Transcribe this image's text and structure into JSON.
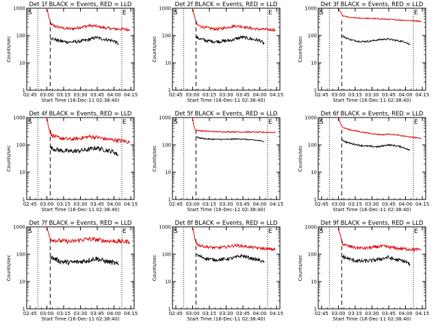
{
  "figure": {
    "background": "#ffffff",
    "colors": {
      "events": "#000000",
      "lld": "#dd0000",
      "axes": "#000000"
    }
  },
  "chart_data": [
    {
      "type": "line",
      "title": "Det 1f BLACK = Events, RED = LLD",
      "xlabel": "Start Time (16-Dec-11 02:38:40)",
      "ylabel": "Counts/sec",
      "xticks": [
        "02:45",
        "03:00",
        "03:15",
        "03:30",
        "03:45",
        "04:00",
        "04:15"
      ],
      "yticks": [
        "1",
        "10",
        "100",
        "1000"
      ],
      "yscale": "log",
      "ylim": [
        1,
        1000
      ],
      "marker_left": "S",
      "marker_right": "E",
      "dotted_lines": [
        "02:52",
        "04:07"
      ],
      "dashed_line": "03:03",
      "series": [
        {
          "color": "#dd0000",
          "x": [
            "03:00",
            "03:02",
            "03:04",
            "03:08",
            "03:15",
            "03:22",
            "03:30",
            "03:38",
            "03:44",
            "03:52",
            "04:00",
            "04:08",
            "04:14"
          ],
          "y": [
            1000,
            420,
            250,
            215,
            185,
            175,
            200,
            230,
            220,
            190,
            175,
            170,
            165
          ],
          "noise": 0.05
        },
        {
          "color": "#000000",
          "x": [
            "03:03",
            "03:06",
            "03:12",
            "03:20",
            "03:28",
            "03:36",
            "03:44",
            "03:50",
            "03:56",
            "04:00",
            "04:04"
          ],
          "y": [
            80,
            75,
            62,
            58,
            60,
            68,
            85,
            75,
            68,
            64,
            48
          ],
          "noise": 0.06
        }
      ]
    },
    {
      "type": "line",
      "title": "Det 2f BLACK = Events, RED = LLD",
      "xlabel": "Start Time (16-Dec-11 02:38:40)",
      "ylabel": "Counts/sec",
      "xticks": [
        "02:45",
        "03:00",
        "03:15",
        "03:30",
        "03:45",
        "04:00",
        "04:15"
      ],
      "yticks": [
        "1",
        "10",
        "100",
        "1000"
      ],
      "yscale": "log",
      "ylim": [
        1,
        1000
      ],
      "marker_left": "S",
      "marker_right": "E",
      "dotted_lines": [
        "02:52",
        "04:07"
      ],
      "dashed_line": "03:03",
      "series": [
        {
          "color": "#dd0000",
          "x": [
            "03:00",
            "03:02",
            "03:04",
            "03:08",
            "03:15",
            "03:22",
            "03:30",
            "03:38",
            "03:44",
            "03:52",
            "04:00",
            "04:08",
            "04:14"
          ],
          "y": [
            1000,
            430,
            250,
            210,
            185,
            170,
            195,
            225,
            215,
            185,
            170,
            165,
            160
          ],
          "noise": 0.05
        },
        {
          "color": "#000000",
          "x": [
            "03:03",
            "03:06",
            "03:12",
            "03:20",
            "03:28",
            "03:36",
            "03:44",
            "03:50",
            "03:56",
            "04:00",
            "04:04"
          ],
          "y": [
            85,
            78,
            65,
            60,
            62,
            70,
            88,
            78,
            70,
            66,
            50
          ],
          "noise": 0.06
        }
      ]
    },
    {
      "type": "line",
      "title": "Det 3f BLACK = Events, RED = LLD",
      "xlabel": "Start Time (16-Dec-11 02:38:40)",
      "ylabel": "Counts/sec",
      "xticks": [
        "02:45",
        "03:00",
        "03:15",
        "03:30",
        "03:45",
        "04:00",
        "04:15"
      ],
      "yticks": [
        "1",
        "10",
        "100",
        "1000"
      ],
      "yscale": "log",
      "ylim": [
        1,
        1000
      ],
      "marker_left": "S",
      "marker_right": "E",
      "dotted_lines": [
        "02:52",
        "04:07"
      ],
      "dashed_line": "03:03",
      "series": [
        {
          "color": "#dd0000",
          "x": [
            "03:00",
            "03:02",
            "03:04",
            "03:10",
            "03:20",
            "03:30",
            "03:40",
            "03:50",
            "04:00",
            "04:08",
            "04:14"
          ],
          "y": [
            1000,
            700,
            520,
            460,
            430,
            420,
            400,
            380,
            360,
            345,
            335
          ],
          "noise": 0.02
        },
        {
          "color": "#000000",
          "x": [
            "03:03",
            "03:06",
            "03:12",
            "03:20",
            "03:28",
            "03:36",
            "03:44",
            "03:50",
            "03:56",
            "04:00",
            "04:04"
          ],
          "y": [
            100,
            85,
            68,
            60,
            62,
            70,
            75,
            68,
            62,
            58,
            45
          ],
          "noise": 0.03
        }
      ]
    },
    {
      "type": "line",
      "title": "Det 4f BLACK = Events, RED = LLD",
      "xlabel": "Start Time (16-Dec-11 02:38:40)",
      "ylabel": "Counts/sec",
      "xticks": [
        "02:45",
        "03:00",
        "03:15",
        "03:30",
        "03:45",
        "04:00",
        "04:15"
      ],
      "yticks": [
        "1",
        "10",
        "100",
        "1000"
      ],
      "yscale": "log",
      "ylim": [
        1,
        1000
      ],
      "marker_left": "S",
      "marker_right": "E",
      "dotted_lines": [
        "02:52",
        "04:07"
      ],
      "dashed_line": "03:03",
      "series": [
        {
          "color": "#dd0000",
          "x": [
            "03:00",
            "03:02",
            "03:04",
            "03:08",
            "03:15",
            "03:22",
            "03:30",
            "03:38",
            "03:44",
            "03:52",
            "04:00",
            "04:08",
            "04:14"
          ],
          "y": [
            1000,
            400,
            230,
            190,
            170,
            160,
            175,
            200,
            190,
            165,
            150,
            140,
            125
          ],
          "noise": 0.07
        },
        {
          "color": "#000000",
          "x": [
            "03:03",
            "03:06",
            "03:12",
            "03:20",
            "03:28",
            "03:36",
            "03:44",
            "03:50",
            "03:56",
            "04:00",
            "04:04"
          ],
          "y": [
            80,
            72,
            62,
            58,
            60,
            66,
            78,
            68,
            60,
            55,
            42
          ],
          "noise": 0.08
        }
      ]
    },
    {
      "type": "line",
      "title": "Det 5f BLACK = Events, RED = LLD",
      "xlabel": "Start Time (16-Dec-11 02:38:40)",
      "ylabel": "Counts/sec",
      "xticks": [
        "02:45",
        "03:00",
        "03:15",
        "03:30",
        "03:45",
        "04:00",
        "04:15"
      ],
      "yticks": [
        "1",
        "10",
        "100",
        "1000"
      ],
      "yscale": "log",
      "ylim": [
        1,
        1000
      ],
      "marker_left": "S",
      "marker_right": "E",
      "dotted_lines": [
        "02:52",
        "04:07"
      ],
      "dashed_line": "03:03",
      "series": [
        {
          "color": "#dd0000",
          "x": [
            "03:00",
            "03:01",
            "03:03",
            "03:10",
            "03:20",
            "03:30",
            "03:40",
            "03:50",
            "04:00",
            "04:08",
            "04:14"
          ],
          "y": [
            1000,
            500,
            340,
            320,
            305,
            300,
            300,
            295,
            290,
            290,
            285
          ],
          "noise": 0.02
        },
        {
          "color": "#000000",
          "x": [
            "03:03",
            "03:06",
            "03:12",
            "03:20",
            "03:28",
            "03:36",
            "03:44",
            "03:50",
            "03:56",
            "04:00",
            "04:04"
          ],
          "y": [
            200,
            180,
            165,
            160,
            158,
            162,
            165,
            155,
            148,
            142,
            135
          ],
          "noise": 0.02
        }
      ]
    },
    {
      "type": "line",
      "title": "Det 6f BLACK = Events, RED = LLD",
      "xlabel": "Start Time (16-Dec-11 02:38:40)",
      "ylabel": "Counts/sec",
      "xticks": [
        "02:45",
        "03:00",
        "03:15",
        "03:30",
        "03:45",
        "04:00",
        "04:15"
      ],
      "yticks": [
        "1",
        "10",
        "100",
        "1000"
      ],
      "yscale": "log",
      "ylim": [
        1,
        1000
      ],
      "marker_left": "S",
      "marker_right": "E",
      "dotted_lines": [
        "02:52",
        "04:07"
      ],
      "dashed_line": "03:03",
      "series": [
        {
          "color": "#dd0000",
          "x": [
            "03:00",
            "03:02",
            "03:04",
            "03:10",
            "03:20",
            "03:30",
            "03:40",
            "03:46",
            "03:52",
            "04:00",
            "04:08",
            "04:14"
          ],
          "y": [
            1000,
            600,
            430,
            360,
            300,
            255,
            235,
            250,
            230,
            205,
            185,
            175
          ],
          "noise": 0.02
        },
        {
          "color": "#000000",
          "x": [
            "03:03",
            "03:06",
            "03:12",
            "03:20",
            "03:28",
            "03:36",
            "03:44",
            "03:50",
            "03:56",
            "04:00",
            "04:04"
          ],
          "y": [
            160,
            130,
            110,
            95,
            88,
            85,
            100,
            95,
            85,
            75,
            62
          ],
          "noise": 0.03
        }
      ]
    },
    {
      "type": "line",
      "title": "Det 7f BLACK = Events, RED = LLD",
      "xlabel": "Start Time (16-Dec-11 02:38:40)",
      "ylabel": "Counts/sec",
      "xticks": [
        "02:45",
        "03:00",
        "03:15",
        "03:30",
        "03:45",
        "04:00",
        "04:15"
      ],
      "yticks": [
        "1",
        "10",
        "100",
        "1000"
      ],
      "yscale": "log",
      "ylim": [
        1,
        1000
      ],
      "marker_left": "S",
      "marker_right": "E",
      "dotted_lines": [
        "02:52",
        "04:07"
      ],
      "dashed_line": "03:03",
      "series": [
        {
          "color": "#dd0000",
          "x": [
            "03:00",
            "03:02",
            "03:04",
            "03:08",
            "03:15",
            "03:22",
            "03:30",
            "03:38",
            "03:44",
            "03:52",
            "04:00",
            "04:08",
            "04:14"
          ],
          "y": [
            1000,
            500,
            350,
            320,
            300,
            290,
            330,
            360,
            340,
            310,
            300,
            290,
            285
          ],
          "noise": 0.08
        },
        {
          "color": "#000000",
          "x": [
            "03:03",
            "03:06",
            "03:12",
            "03:20",
            "03:28",
            "03:36",
            "03:44",
            "03:50",
            "03:56",
            "04:00",
            "04:04"
          ],
          "y": [
            80,
            70,
            55,
            50,
            52,
            58,
            70,
            58,
            52,
            48,
            40
          ],
          "noise": 0.09
        }
      ]
    },
    {
      "type": "line",
      "title": "Det 8f BLACK = Events, RED = LLD",
      "xlabel": "Start Time (16-Dec-11 02:38:40)",
      "ylabel": "Counts/sec",
      "xticks": [
        "02:45",
        "03:00",
        "03:15",
        "03:30",
        "03:45",
        "04:00",
        "04:15"
      ],
      "yticks": [
        "1",
        "10",
        "100",
        "1000"
      ],
      "yscale": "log",
      "ylim": [
        1,
        1000
      ],
      "marker_left": "S",
      "marker_right": "E",
      "dotted_lines": [
        "02:52",
        "04:07"
      ],
      "dashed_line": "03:03",
      "series": [
        {
          "color": "#dd0000",
          "x": [
            "03:00",
            "03:02",
            "03:04",
            "03:08",
            "03:15",
            "03:22",
            "03:30",
            "03:38",
            "03:44",
            "03:52",
            "04:00",
            "04:08",
            "04:14"
          ],
          "y": [
            1000,
            380,
            230,
            200,
            180,
            170,
            185,
            210,
            200,
            180,
            165,
            155,
            150
          ],
          "noise": 0.05
        },
        {
          "color": "#000000",
          "x": [
            "03:03",
            "03:06",
            "03:12",
            "03:20",
            "03:28",
            "03:36",
            "03:44",
            "03:50",
            "03:56",
            "04:00",
            "04:04"
          ],
          "y": [
            100,
            85,
            70,
            62,
            65,
            72,
            88,
            75,
            65,
            60,
            50
          ],
          "noise": 0.06
        }
      ]
    },
    {
      "type": "line",
      "title": "Det 9f BLACK = Events, RED = LLD",
      "xlabel": "Start Time (16-Dec-11 02:38:40)",
      "ylabel": "Counts/sec",
      "xticks": [
        "02:45",
        "03:00",
        "03:15",
        "03:30",
        "03:45",
        "04:00",
        "04:15"
      ],
      "yticks": [
        "1",
        "10",
        "100",
        "1000"
      ],
      "yscale": "log",
      "ylim": [
        1,
        1000
      ],
      "marker_left": "S",
      "marker_right": "E",
      "dotted_lines": [
        "02:52",
        "04:07"
      ],
      "dashed_line": "03:03",
      "series": [
        {
          "color": "#dd0000",
          "x": [
            "03:00",
            "03:02",
            "03:04",
            "03:08",
            "03:15",
            "03:22",
            "03:30",
            "03:38",
            "03:44",
            "03:52",
            "04:00",
            "04:08",
            "04:14"
          ],
          "y": [
            1000,
            400,
            240,
            200,
            175,
            165,
            175,
            195,
            185,
            165,
            155,
            150,
            145
          ],
          "noise": 0.06
        },
        {
          "color": "#000000",
          "x": [
            "03:03",
            "03:06",
            "03:12",
            "03:20",
            "03:28",
            "03:36",
            "03:44",
            "03:50",
            "03:56",
            "04:00",
            "04:04"
          ],
          "y": [
            85,
            75,
            62,
            55,
            58,
            64,
            76,
            65,
            58,
            54,
            42
          ],
          "noise": 0.07
        }
      ]
    }
  ]
}
